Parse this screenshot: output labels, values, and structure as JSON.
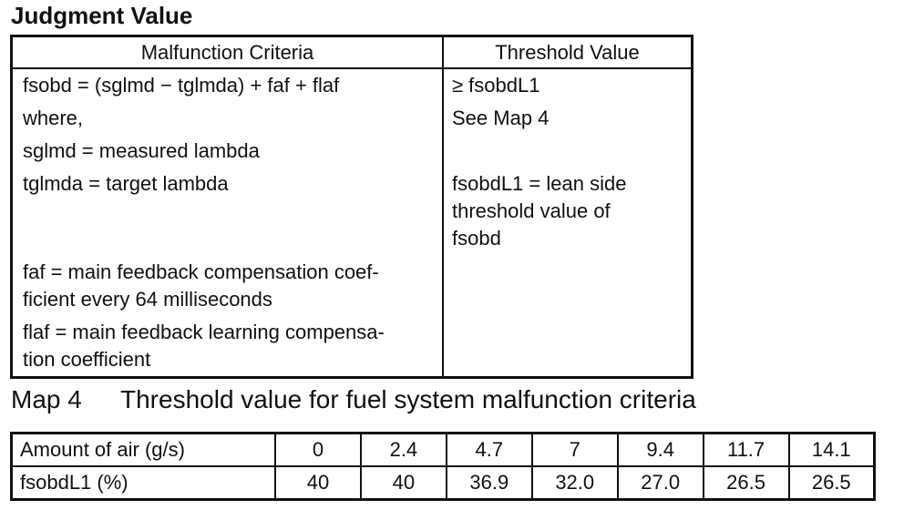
{
  "heading": "Judgment Value",
  "judgment_table": {
    "headers": [
      "Malfunction Criteria",
      "Threshold Value"
    ],
    "criteria_lines": [
      "fsobd = (sglmd − tglmda) + faf + flaf",
      "where,",
      "sglmd = measured lambda",
      "tglmda = target lambda",
      "faf = main feedback compensation coef-",
      "ficient every 64 milliseconds",
      "flaf = main feedback learning compensa-",
      "tion coefficient"
    ],
    "threshold_lines": [
      "≥ fsobdL1",
      "See Map 4",
      "fsobdL1 = lean side",
      "threshold value of",
      "fsobd"
    ]
  },
  "map": {
    "number": "Map 4",
    "title": "Threshold value for fuel system malfunction criteria",
    "row_labels": [
      "Amount of air (g/s)",
      "fsobdL1 (%)"
    ],
    "air": [
      "0",
      "2.4",
      "4.7",
      "7",
      "9.4",
      "11.7",
      "14.1"
    ],
    "fsobdL1": [
      "40",
      "40",
      "36.9",
      "32.0",
      "27.0",
      "26.5",
      "26.5"
    ]
  }
}
